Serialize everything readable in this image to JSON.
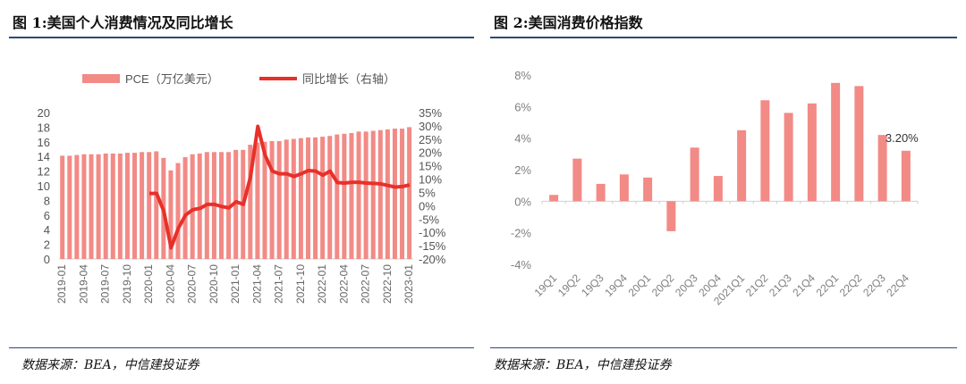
{
  "left_panel": {
    "title": "图 1:美国个人消费情况及同比增长",
    "source": "数据来源：BEA，中信建投证券"
  },
  "right_panel": {
    "title": "图 2:美国消费价格指数",
    "source": "数据来源：BEA，中信建投证券"
  },
  "colors": {
    "bar": "#f28a86",
    "line": "#e8302a",
    "rule": "#2b4a7a",
    "axis_text": "#7f7f7f"
  },
  "chart_data": [
    {
      "type": "bar+line",
      "legend_placement": "top",
      "series": [
        {
          "name": "PCE（万亿美元）",
          "type": "bar",
          "axis": "left",
          "values": [
            14.1,
            14.1,
            14.2,
            14.3,
            14.3,
            14.3,
            14.4,
            14.4,
            14.4,
            14.5,
            14.5,
            14.6,
            14.6,
            14.7,
            13.8,
            12.1,
            13.1,
            13.9,
            14.3,
            14.4,
            14.6,
            14.6,
            14.6,
            14.6,
            14.9,
            14.9,
            15.6,
            15.9,
            16.0,
            16.1,
            16.1,
            16.3,
            16.4,
            16.5,
            16.6,
            16.6,
            16.7,
            16.8,
            17.0,
            17.1,
            17.2,
            17.4,
            17.4,
            17.5,
            17.6,
            17.7,
            17.8,
            17.8,
            18.0
          ]
        },
        {
          "name": "同比增长（右轴）",
          "type": "line",
          "axis": "right",
          "unit": "%",
          "values": [
            null,
            null,
            null,
            null,
            null,
            null,
            null,
            null,
            null,
            null,
            null,
            null,
            4.6,
            4.6,
            -2.1,
            -15.8,
            -8.5,
            -3.5,
            -1.5,
            -1.0,
            0.5,
            0.5,
            -0.3,
            -0.8,
            1.5,
            0.5,
            11.0,
            29.8,
            19.0,
            13.0,
            12.0,
            12.0,
            11.0,
            12.0,
            13.2,
            13.0,
            11.5,
            13.0,
            8.7,
            8.5,
            8.8,
            8.8,
            8.5,
            8.4,
            8.2,
            7.6,
            7.0,
            7.2,
            7.8
          ]
        }
      ],
      "x_months": [
        "2019-01",
        "2019-02",
        "2019-03",
        "2019-04",
        "2019-05",
        "2019-06",
        "2019-07",
        "2019-08",
        "2019-09",
        "2019-10",
        "2019-11",
        "2019-12",
        "2020-01",
        "2020-02",
        "2020-03",
        "2020-04",
        "2020-05",
        "2020-06",
        "2020-07",
        "2020-08",
        "2020-09",
        "2020-10",
        "2020-11",
        "2020-12",
        "2021-01",
        "2021-02",
        "2021-03",
        "2021-04",
        "2021-05",
        "2021-06",
        "2021-07",
        "2021-08",
        "2021-09",
        "2021-10",
        "2021-11",
        "2021-12",
        "2022-01",
        "2022-02",
        "2022-03",
        "2022-04",
        "2022-05",
        "2022-06",
        "2022-07",
        "2022-08",
        "2022-09",
        "2022-10",
        "2022-11",
        "2022-12",
        "2023-01"
      ],
      "x_tick_labels": [
        "2019-01",
        "2019-04",
        "2019-07",
        "2019-10",
        "2020-01",
        "2020-04",
        "2020-07",
        "2020-10",
        "2021-01",
        "2021-04",
        "2021-07",
        "2021-10",
        "2022-01",
        "2022-04",
        "2022-07",
        "2022-10",
        "2023-01"
      ],
      "y_left": {
        "range": [
          0,
          20
        ],
        "ticks": [
          "0",
          "2",
          "4",
          "6",
          "8",
          "10",
          "12",
          "14",
          "16",
          "18",
          "20"
        ]
      },
      "y_right": {
        "range": [
          -20,
          35
        ],
        "ticks": [
          "-20%",
          "-15%",
          "-10%",
          "-5%",
          "0%",
          "5%",
          "10%",
          "15%",
          "20%",
          "25%",
          "30%",
          "35%"
        ]
      },
      "grid": false
    },
    {
      "type": "bar",
      "categories": [
        "19Q1",
        "19Q2",
        "19Q3",
        "19Q4",
        "20Q1",
        "20Q2",
        "20Q3",
        "20Q4",
        "2021Q1",
        "21Q2",
        "21Q3",
        "21Q4",
        "22Q1",
        "22Q2",
        "22Q3",
        "22Q4"
      ],
      "values": [
        0.4,
        2.7,
        1.1,
        1.7,
        1.5,
        -1.9,
        3.4,
        1.6,
        4.5,
        6.4,
        5.6,
        6.2,
        7.5,
        7.3,
        4.2,
        3.2
      ],
      "unit": "%",
      "data_labels": [
        {
          "category": "22Q4",
          "text": "3.20%"
        }
      ],
      "y": {
        "range": [
          -4,
          8
        ],
        "ticks": [
          "-4%",
          "-2%",
          "0%",
          "2%",
          "4%",
          "6%",
          "8%"
        ]
      },
      "grid": false
    }
  ]
}
